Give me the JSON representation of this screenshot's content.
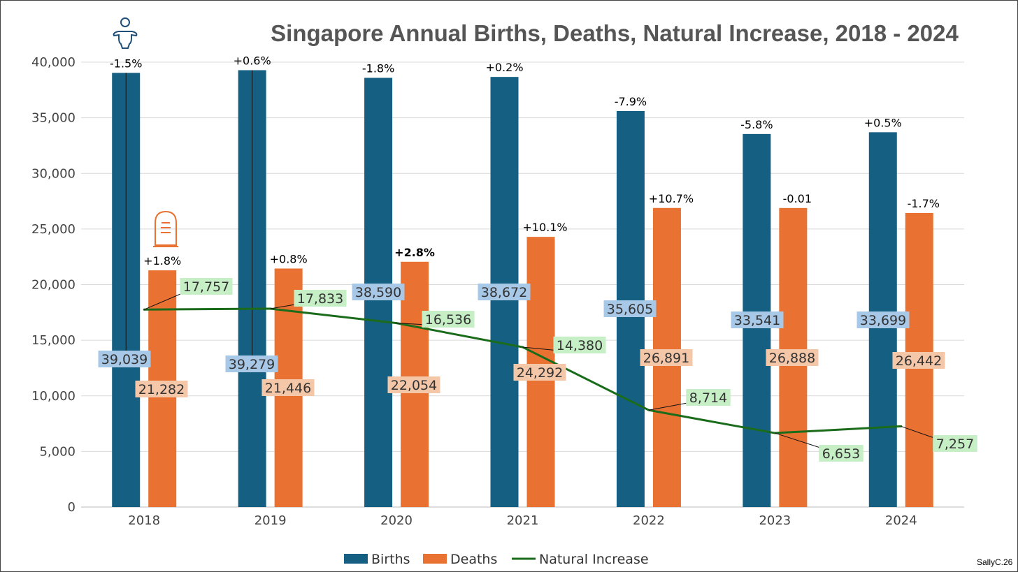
{
  "chart_data": {
    "type": "bar",
    "title": "Singapore Annual Births, Deaths, Natural Increase, 2018 - 2024",
    "categories": [
      "2018",
      "2019",
      "2020",
      "2021",
      "2022",
      "2023",
      "2024"
    ],
    "ylim": [
      0,
      40000
    ],
    "yticks": [
      0,
      5000,
      10000,
      15000,
      20000,
      25000,
      30000,
      35000,
      40000
    ],
    "ytick_labels": [
      "0",
      "5,000",
      "10,000",
      "15,000",
      "20,000",
      "25,000",
      "30,000",
      "35,000",
      "40,000"
    ],
    "grid": true,
    "legend_position": "bottom",
    "series": [
      {
        "name": "Births",
        "type": "bar",
        "color": "#156082",
        "label_bg": "#a8c8e8",
        "values": [
          39039,
          39279,
          38590,
          38672,
          35605,
          33541,
          33699
        ],
        "labels": [
          "39,039",
          "39,279",
          "38,590",
          "38,672",
          "35,605",
          "33,541",
          "33,699"
        ],
        "change_labels": [
          "-1.5%",
          "+0.6%",
          "-1.8%",
          "+0.2%",
          "-7.9%",
          "-5.8%",
          "+0.5%"
        ]
      },
      {
        "name": "Deaths",
        "type": "bar",
        "color": "#e97132",
        "label_bg": "#f5c7a9",
        "values": [
          21282,
          21446,
          22054,
          24292,
          26891,
          26888,
          26442
        ],
        "labels": [
          "21,282",
          "21,446",
          "22,054",
          "24,292",
          "26,891",
          "26,888",
          "26,442"
        ],
        "change_labels": [
          "+1.8%",
          "+0.8%",
          "+2.8%",
          "+10.1%",
          "+10.7%",
          "-0.01",
          "-1.7%"
        ]
      },
      {
        "name": "Natural Increase",
        "type": "line",
        "color": "#1a6b1a",
        "label_bg": "#c6efc6",
        "values": [
          17757,
          17833,
          16536,
          14380,
          8714,
          6653,
          7257
        ],
        "labels": [
          "17,757",
          "17,833",
          "16,536",
          "14,380",
          "8,714",
          "6,653",
          "7,257"
        ]
      }
    ]
  },
  "credit": "SallyC.26",
  "icons": [
    "baby-icon",
    "tombstone-icon"
  ]
}
